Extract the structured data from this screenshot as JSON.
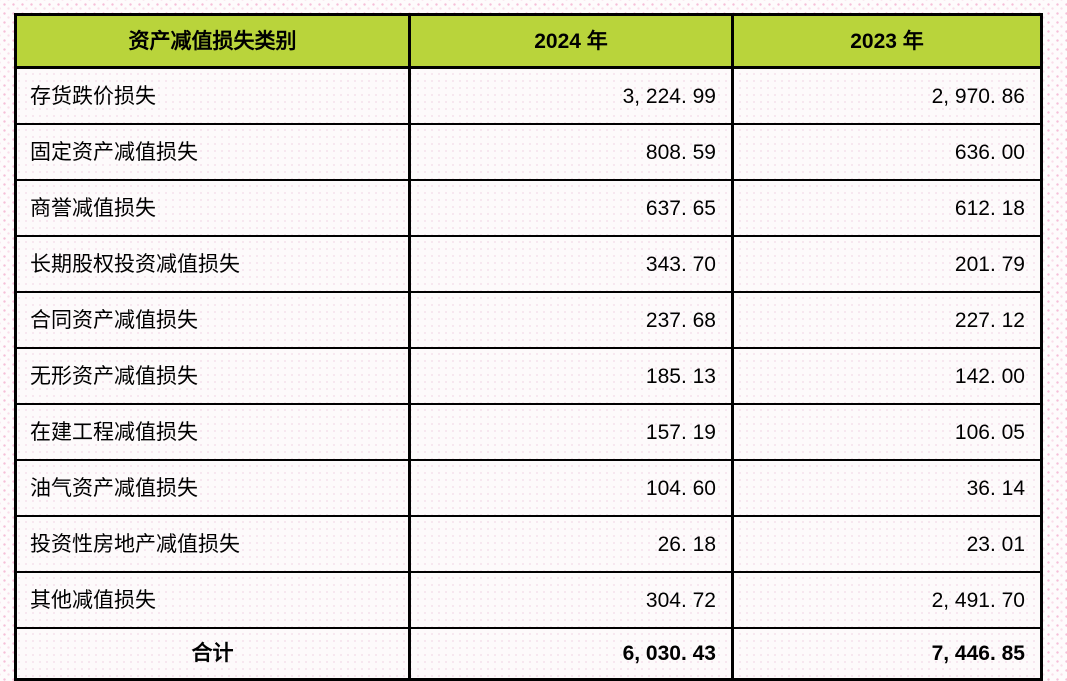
{
  "table": {
    "header": {
      "category": "资产减值损失类别",
      "year_2024": "2024 年",
      "year_2023": "2023 年",
      "header_bg_color": "#b9d43b"
    },
    "rows": [
      {
        "label": "存货跌价损失",
        "y2024": "3, 224. 99",
        "y2023": "2, 970. 86"
      },
      {
        "label": "固定资产减值损失",
        "y2024": "808. 59",
        "y2023": "636. 00"
      },
      {
        "label": "商誉减值损失",
        "y2024": "637. 65",
        "y2023": "612. 18"
      },
      {
        "label": "长期股权投资减值损失",
        "y2024": "343. 70",
        "y2023": "201. 79"
      },
      {
        "label": "合同资产减值损失",
        "y2024": "237. 68",
        "y2023": "227. 12"
      },
      {
        "label": "无形资产减值损失",
        "y2024": "185. 13",
        "y2023": "142. 00"
      },
      {
        "label": "在建工程减值损失",
        "y2024": "157. 19",
        "y2023": "106. 05"
      },
      {
        "label": "油气资产减值损失",
        "y2024": "104. 60",
        "y2023": "36. 14"
      },
      {
        "label": "投资性房地产减值损失",
        "y2024": "26. 18",
        "y2023": "23. 01"
      },
      {
        "label": "其他减值损失",
        "y2024": "304. 72",
        "y2023": "2, 491. 70"
      }
    ],
    "total": {
      "label": "合计",
      "y2024": "6, 030. 43",
      "y2023": "7, 446. 85"
    },
    "border_color": "#000000",
    "page_dot_color": "#ee8cb9"
  }
}
